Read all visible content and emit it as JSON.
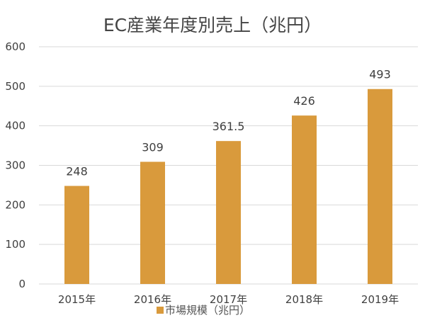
{
  "chart_data": {
    "type": "bar",
    "title": "EC産業年度別売上（兆円）",
    "categories": [
      "2015年",
      "2016年",
      "2017年",
      "2018年",
      "2019年"
    ],
    "series": [
      {
        "name": "市場規模（兆円）",
        "values": [
          248,
          309,
          361.5,
          426,
          493
        ],
        "color": "#D99A3C"
      }
    ],
    "data_labels": [
      "248",
      "309",
      "361.5",
      "426",
      "493"
    ],
    "ylim": [
      0,
      600
    ],
    "yticks": [
      0,
      100,
      200,
      300,
      400,
      500,
      600
    ],
    "grid": true,
    "legend_position": "bottom"
  }
}
